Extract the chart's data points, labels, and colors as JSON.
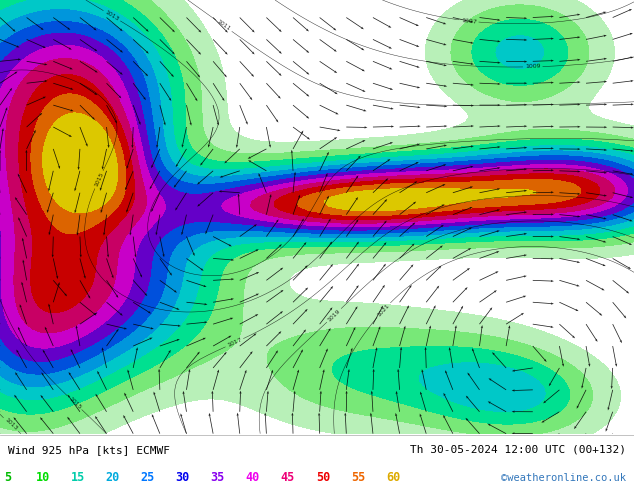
{
  "title_left": "Wind 925 hPa [kts] ECMWF",
  "title_right": "Th 30-05-2024 12:00 UTC (00+132)",
  "credit": "©weatheronline.co.uk",
  "legend_values": [
    "5",
    "10",
    "15",
    "20",
    "25",
    "30",
    "35",
    "40",
    "45",
    "50",
    "55",
    "60"
  ],
  "legend_colors": [
    "#00bb00",
    "#00dd00",
    "#00ccaa",
    "#00aadd",
    "#0077ff",
    "#0000ee",
    "#8800ee",
    "#ee00ee",
    "#ee0077",
    "#ee0000",
    "#ee6600",
    "#ddaa00"
  ],
  "bg_color": "#ffffff",
  "figsize": [
    6.34,
    4.9
  ],
  "dpi": 100,
  "wind_levels": [
    0,
    5,
    10,
    15,
    20,
    25,
    30,
    35,
    40,
    45,
    50,
    55,
    60,
    100
  ],
  "wind_fill_colors": [
    "#ffffff",
    "#b8f0b8",
    "#78e878",
    "#00e090",
    "#00c8c8",
    "#0096dc",
    "#0050dc",
    "#6400c8",
    "#c800c8",
    "#c80064",
    "#c80000",
    "#dc6400",
    "#dcc800"
  ],
  "contour_color": "#000000",
  "arrow_color": "#000000"
}
